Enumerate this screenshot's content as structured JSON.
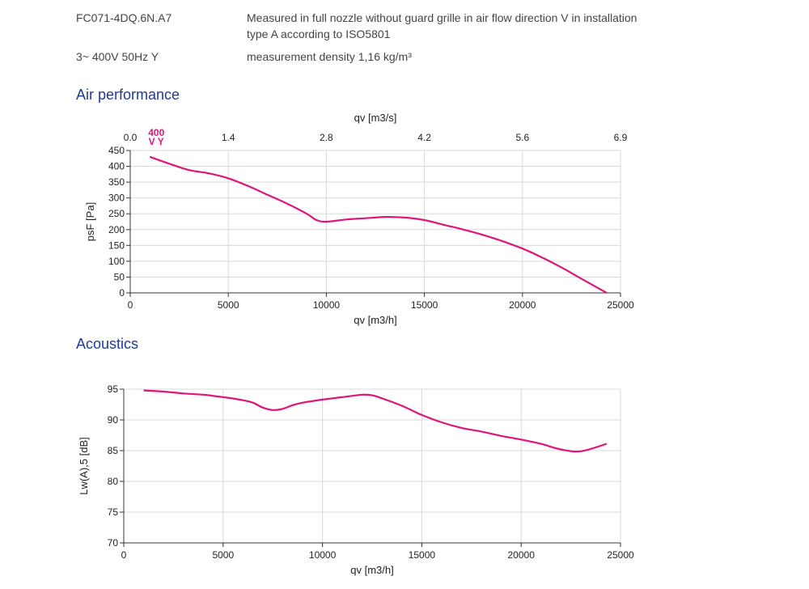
{
  "header": {
    "model": "FC071-4DQ.6N.A7",
    "electrical": "3~ 400V 50Hz Y",
    "measurement_line1": "Measured in full nozzle without guard grille in air flow direction V in installation",
    "measurement_line2": "type A according to ISO5801",
    "density": "measurement density 1,16 kg/m³"
  },
  "sections": {
    "air_title": "Air performance",
    "acoustics_title": "Acoustics"
  },
  "colors": {
    "curve": "#e0147a",
    "grid": "#d9d9d9",
    "axis": "#333333",
    "title": "#1f3a93"
  },
  "chart_data": [
    {
      "type": "line",
      "xlabel": "qv [m3/h]",
      "ylabel": "psF [Pa]",
      "x2label": "qv [m3/s]",
      "xlim": [
        0,
        25000
      ],
      "ylim": [
        0,
        450
      ],
      "xticks": [
        0,
        5000,
        10000,
        15000,
        20000,
        25000
      ],
      "yticks": [
        0,
        50,
        100,
        150,
        200,
        250,
        300,
        350,
        400,
        450
      ],
      "x2ticks": [
        "0.0",
        "1.4",
        "2.8",
        "4.2",
        "5.6",
        "6.9"
      ],
      "grid": true,
      "curve_label": [
        "400",
        "V Y"
      ],
      "series": [
        {
          "x": [
            1000,
            2000,
            3000,
            4000,
            5000,
            6000,
            7000,
            8000,
            9000,
            9500,
            10000,
            11000,
            12000,
            13000,
            14000,
            15000,
            16000,
            17000,
            18000,
            19000,
            20000,
            21000,
            22000,
            23000,
            24300
          ],
          "y": [
            430,
            408,
            388,
            378,
            362,
            338,
            310,
            282,
            250,
            230,
            225,
            232,
            236,
            240,
            238,
            230,
            215,
            200,
            183,
            163,
            140,
            112,
            80,
            45,
            0
          ]
        }
      ]
    },
    {
      "type": "line",
      "xlabel": "qv [m3/h]",
      "ylabel": "Lw(A),5 [dB]",
      "xlim": [
        0,
        25000
      ],
      "ylim": [
        70,
        95
      ],
      "xticks": [
        0,
        5000,
        10000,
        15000,
        20000,
        25000
      ],
      "yticks": [
        70,
        75,
        80,
        85,
        90,
        95
      ],
      "grid": true,
      "series": [
        {
          "x": [
            1000,
            2000,
            3000,
            4000,
            5000,
            6000,
            6500,
            7000,
            7500,
            8000,
            8500,
            9000,
            10000,
            11000,
            12000,
            12500,
            13000,
            14000,
            15000,
            16000,
            17000,
            18000,
            19000,
            20000,
            21000,
            22000,
            23000,
            24300
          ],
          "y": [
            94.8,
            94.6,
            94.3,
            94.1,
            93.7,
            93.2,
            92.8,
            92.0,
            91.6,
            91.8,
            92.4,
            92.8,
            93.3,
            93.7,
            94.1,
            94.0,
            93.5,
            92.3,
            90.8,
            89.6,
            88.7,
            88.1,
            87.4,
            86.8,
            86.1,
            85.2,
            84.9,
            86.1
          ]
        }
      ]
    }
  ]
}
